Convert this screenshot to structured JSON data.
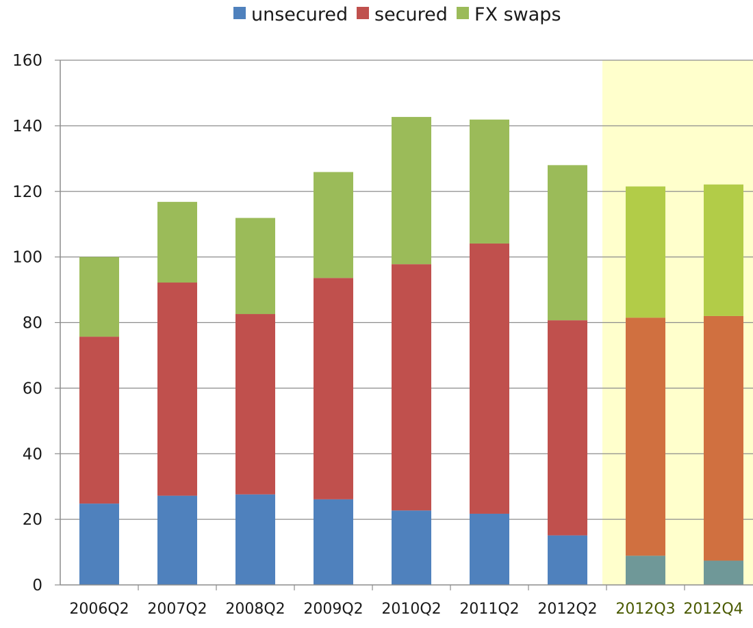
{
  "chart_data": {
    "type": "bar",
    "stacked": true,
    "categories": [
      "2006Q2",
      "2007Q2",
      "2008Q2",
      "2009Q2",
      "2010Q2",
      "2011Q2",
      "2012Q2",
      "2012Q3",
      "2012Q4"
    ],
    "highlighted_categories": [
      "2012Q3",
      "2012Q4"
    ],
    "series": [
      {
        "name": "unsecured",
        "values": [
          24.8,
          27.2,
          27.6,
          26.1,
          22.7,
          21.7,
          15.1,
          8.9,
          7.4
        ]
      },
      {
        "name": "secured",
        "values": [
          50.9,
          65.0,
          55.0,
          67.5,
          75.1,
          82.4,
          65.6,
          72.6,
          74.6
        ]
      },
      {
        "name": "FX swaps",
        "values": [
          24.3,
          24.6,
          29.3,
          32.3,
          44.9,
          37.8,
          47.3,
          40.0,
          40.1
        ]
      }
    ],
    "y_ticks": [
      "0",
      "20",
      "40",
      "60",
      "80",
      "100",
      "120",
      "140",
      "160"
    ],
    "ylim": [
      0,
      160
    ],
    "grid": true,
    "legend_position": "top",
    "title": "",
    "xlabel": "",
    "ylabel": "",
    "colors": {
      "unsecured": "#4F81BD",
      "secured": "#C0504D",
      "FX swaps": "#9BBB59",
      "highlight_background": "#FFFFCC",
      "highlight_unsecured": "#6F9898",
      "highlight_secured": "#D07040",
      "highlight_fx_swaps": "#B2CC48",
      "highlight_text": "#4A5A00",
      "gridline": "#8C8C8C"
    }
  }
}
